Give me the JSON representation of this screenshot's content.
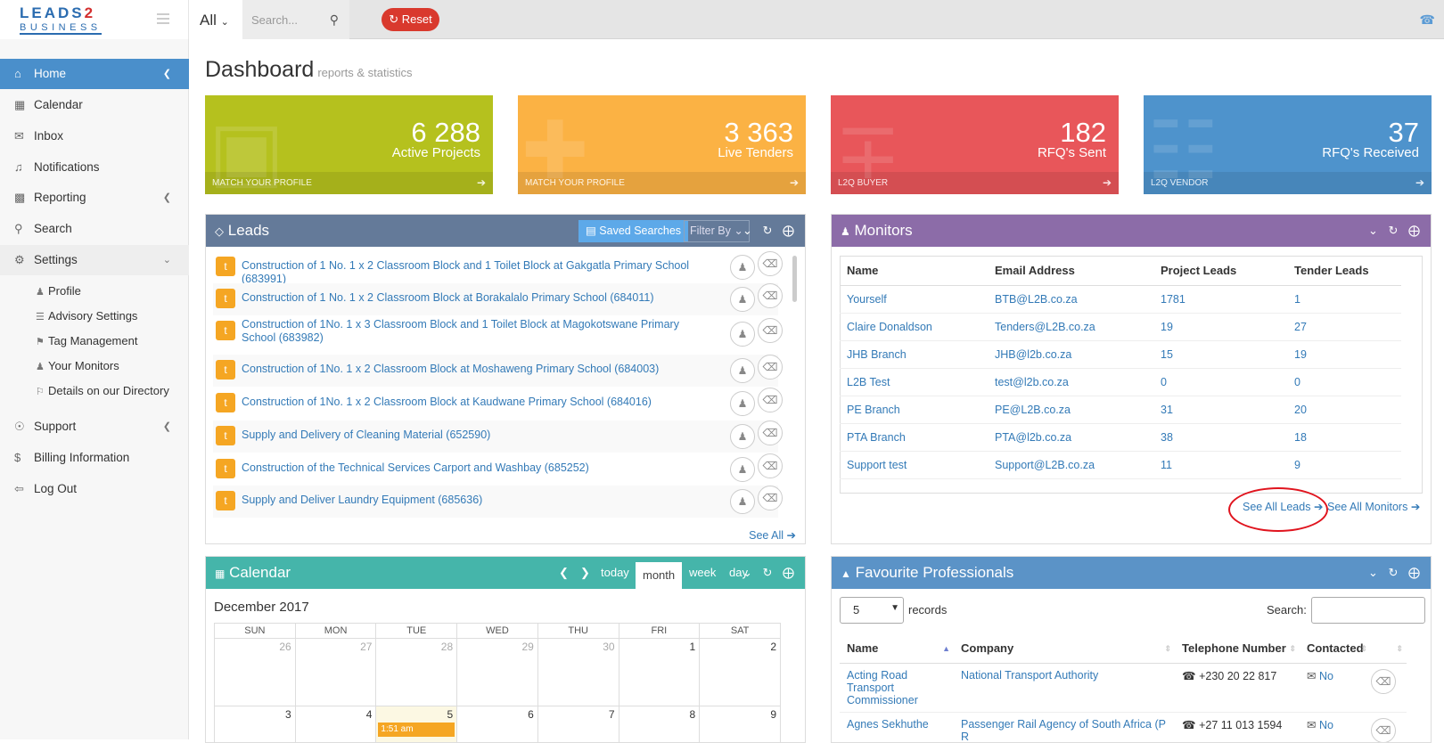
{
  "header": {
    "logo_top": "LEADS",
    "logo_two": "2",
    "logo_bottom": "BUSINESS",
    "scope": "All",
    "search_placeholder": "Search...",
    "reset": "Reset"
  },
  "sidebar": {
    "items": [
      {
        "label": "Home",
        "icon": "home-icon"
      },
      {
        "label": "Calendar",
        "icon": "calendar-icon"
      },
      {
        "label": "Inbox",
        "icon": "envelope-icon"
      },
      {
        "label": "Notifications",
        "icon": "bell-icon"
      },
      {
        "label": "Reporting",
        "icon": "bar-chart-icon"
      },
      {
        "label": "Search",
        "icon": "search-icon"
      },
      {
        "label": "Settings",
        "icon": "gear-icon"
      }
    ],
    "settings_sub": [
      "Profile",
      "Advisory Settings",
      "Tag Management",
      "Your Monitors",
      "Details on our Directory"
    ],
    "bottom_items": [
      "Support",
      "Billing Information",
      "Log Out"
    ]
  },
  "page": {
    "title": "Dashboard",
    "subtitle": "reports & statistics"
  },
  "stats": [
    {
      "value": "6 288",
      "label": "Active Projects",
      "footer": "MATCH YOUR PROFILE",
      "color": "#b5c11e"
    },
    {
      "value": "3 363",
      "label": "Live Tenders",
      "footer": "MATCH YOUR PROFILE",
      "color": "#fbb244"
    },
    {
      "value": "182",
      "label": "RFQ's Sent",
      "footer": "L2Q BUYER",
      "color": "#e8565a"
    },
    {
      "value": "37",
      "label": "RFQ's Received",
      "footer": "L2Q VENDOR",
      "color": "#4e93cc"
    }
  ],
  "leads": {
    "title": "Leads",
    "saved_searches": "Saved Searches",
    "filter_by": "Filter By",
    "see_all": "See All",
    "items": [
      "Construction of 1 No. 1 x 2 Classroom Block and 1 Toilet Block at Gakgatla Primary School (683991)",
      "Construction of 1 No. 1 x 2 Classroom Block at Borakalalo Primary School (684011)",
      "Construction of 1No. 1 x 3 Classroom Block and 1 Toilet Block at Magokotswane Primary School (683982)",
      "Construction of 1No. 1 x 2 Classroom Block at Moshaweng Primary School (684003)",
      "Construction of 1No. 1 x 2 Classroom Block at Kaudwane Primary School (684016)",
      "Supply and Delivery of Cleaning Material (652590)",
      "Construction of the Technical Services Carport and Washbay (685252)",
      "Supply and Deliver Laundry Equipment (685636)"
    ]
  },
  "monitors": {
    "title": "Monitors",
    "columns": [
      "Name",
      "Email Address",
      "Project Leads",
      "Tender Leads"
    ],
    "rows": [
      [
        "Yourself",
        "BTB@L2B.co.za",
        "1781",
        "1"
      ],
      [
        "Claire Donaldson",
        "Tenders@L2B.co.za",
        "19",
        "27"
      ],
      [
        "JHB Branch",
        "JHB@l2b.co.za",
        "15",
        "19"
      ],
      [
        "L2B Test",
        "test@l2b.co.za",
        "0",
        "0"
      ],
      [
        "PE Branch",
        "PE@L2B.co.za",
        "31",
        "20"
      ],
      [
        "PTA Branch",
        "PTA@l2b.co.za",
        "38",
        "18"
      ],
      [
        "Support test",
        "Support@L2B.co.za",
        "11",
        "9"
      ]
    ],
    "see_all_leads": "See All Leads",
    "see_all_monitors": "See All Monitors"
  },
  "calendar": {
    "title": "Calendar",
    "month_label": "December 2017",
    "views": [
      "today",
      "month",
      "week",
      "day"
    ],
    "weekdays": [
      "SUN",
      "MON",
      "TUE",
      "WED",
      "THU",
      "FRI",
      "SAT"
    ],
    "week1": [
      "26",
      "27",
      "28",
      "29",
      "30",
      "1",
      "2"
    ],
    "week2": [
      "3",
      "4",
      "5",
      "6",
      "7",
      "8",
      "9"
    ],
    "event_time": "1:51 am"
  },
  "favourites": {
    "title": "Favourite Professionals",
    "records_value": "5",
    "records_label": "records",
    "search_label": "Search:",
    "columns": [
      "Name",
      "Company",
      "Telephone Number",
      "Contacted"
    ],
    "rows": [
      {
        "name": "Acting Road Transport Commissioner",
        "company": "National Transport Authority",
        "phone": "+230 20 22 817",
        "contacted": "No"
      },
      {
        "name": "Agnes Sekhuthe",
        "company": "Passenger Rail Agency of South Africa (P R",
        "phone": "+27 11 013 1594",
        "contacted": "No"
      }
    ]
  }
}
